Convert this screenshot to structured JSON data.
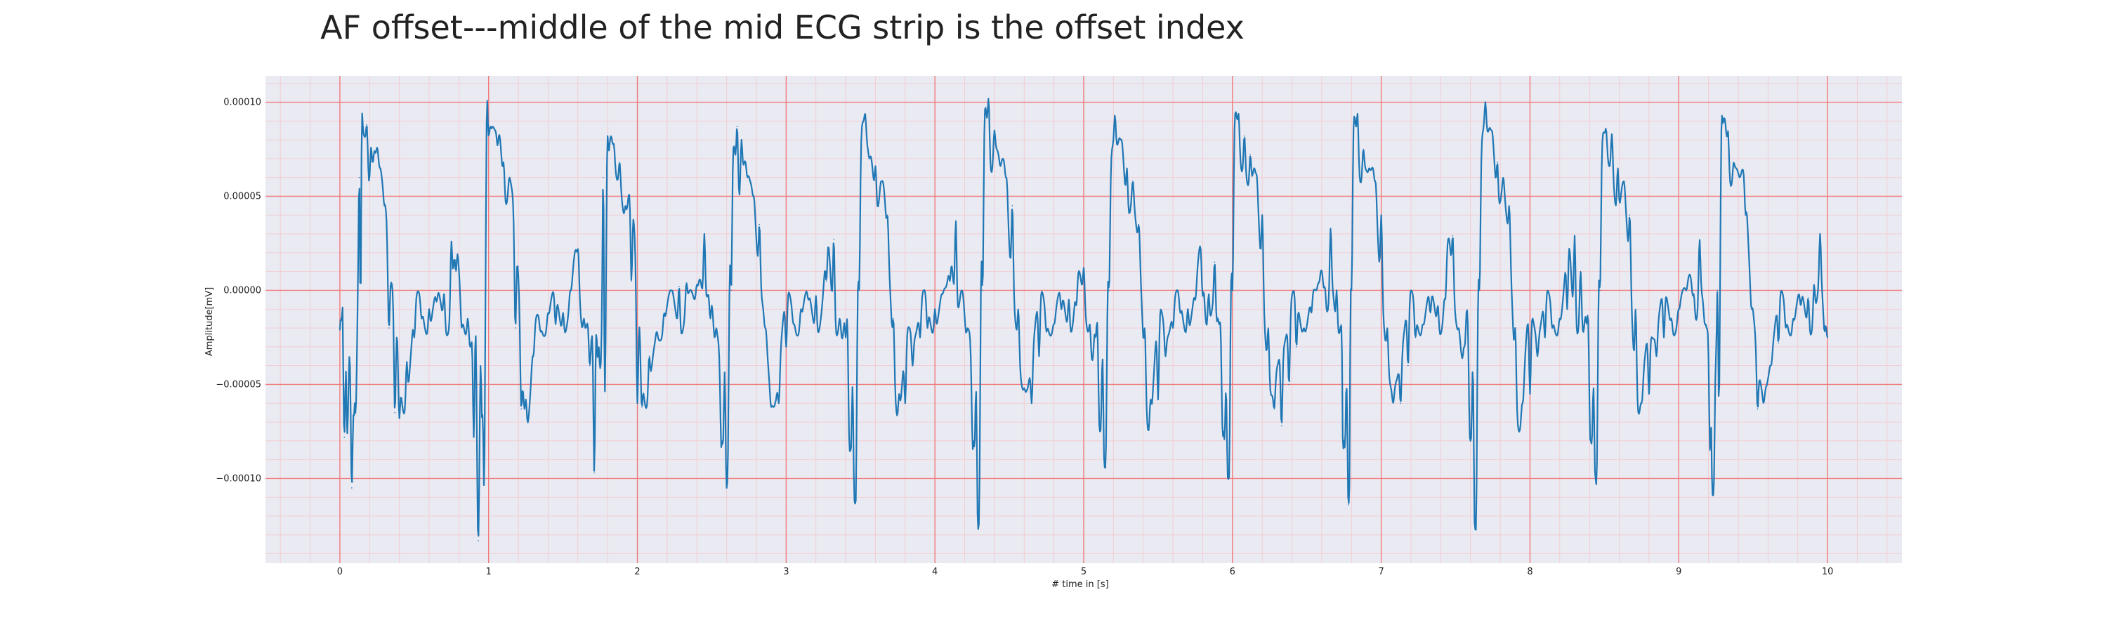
{
  "chart_data": {
    "type": "line",
    "title": "AF offset---middle of the mid ECG strip is the offset index",
    "xlabel": "# time in [s]",
    "ylabel": "Amplitude[mV]",
    "xlim": [
      -0.5,
      10.5
    ],
    "ylim": [
      -0.000145,
      0.000114
    ],
    "x_ticks": [
      0,
      1,
      2,
      3,
      4,
      5,
      6,
      7,
      8,
      9,
      10
    ],
    "x_tick_labels": [
      "0",
      "1",
      "2",
      "3",
      "4",
      "5",
      "6",
      "7",
      "8",
      "9",
      "10"
    ],
    "y_ticks": [
      -0.0001,
      -5e-05,
      0.0,
      5e-05,
      0.0001
    ],
    "y_tick_labels": [
      "−0.00010",
      "−0.00005",
      "0.00000",
      "0.00005",
      "0.00010"
    ],
    "grid": true,
    "colors": {
      "plot_background": "#eaeaf2",
      "major_grid": "#f07a7a",
      "minor_grid": "#f4c6cc",
      "line": "#1f77b4"
    },
    "beats": [
      {
        "r": 0.15,
        "q": 0.1,
        "s": -0.0001,
        "qd": -8e-05,
        "amp": 9.4e-05,
        "pre": -1.5e-05,
        "t": 2.6e-05
      },
      {
        "r": 0.99,
        "q": 0.93,
        "s": -0.000133,
        "qd": -7.5e-05,
        "amp": 0.000101,
        "pre": -1.5e-05,
        "t": 2.6e-05
      },
      {
        "r": 1.8,
        "q": 1.74,
        "s": -9.7e-05,
        "qd": -4e-05,
        "amp": 8.2e-05,
        "pre": -2.2e-05,
        "t": 2.5e-05
      },
      {
        "r": 2.63,
        "q": 2.57,
        "s": -0.000105,
        "qd": -8e-05,
        "amp": 8.7e-05,
        "pre": -1.5e-05,
        "t": 3e-05
      },
      {
        "r": 3.49,
        "q": 3.43,
        "s": -0.000112,
        "qd": -8.5e-05,
        "amp": 9.4e-05,
        "pre": -1.8e-05,
        "t": 2.7e-05
      },
      {
        "r": 4.32,
        "q": 4.26,
        "s": -0.000127,
        "qd": -8e-05,
        "amp": 0.000102,
        "pre": -1.8e-05,
        "t": 3.7e-05
      },
      {
        "r": 5.17,
        "q": 5.11,
        "s": -9.4e-05,
        "qd": -7.5e-05,
        "amp": 9.3e-05,
        "pre": -1.8e-05,
        "t": 1.2e-05
      },
      {
        "r": 6.0,
        "q": 5.94,
        "s": -0.0001,
        "qd": -7.5e-05,
        "amp": 9.4e-05,
        "pre": -1.8e-05,
        "t": 3.3e-05
      },
      {
        "r": 6.8,
        "q": 6.75,
        "s": -0.000114,
        "qd": -8e-05,
        "amp": 9.4e-05,
        "pre": -1.8e-05,
        "t": 3.3e-05
      },
      {
        "r": 7.66,
        "q": 7.6,
        "s": -0.000127,
        "qd": -8e-05,
        "amp": 0.0001,
        "pre": -1.8e-05,
        "t": 2.9e-05
      },
      {
        "r": 8.47,
        "q": 8.41,
        "s": -0.0001,
        "qd": -8e-05,
        "amp": 8.6e-05,
        "pre": -1.8e-05,
        "t": 2.9e-05
      },
      {
        "r": 9.29,
        "q": 9.23,
        "s": -0.000109,
        "qd": -8.5e-05,
        "amp": 9.3e-05,
        "pre": -1.8e-05,
        "t": 2.7e-05
      }
    ],
    "series": [
      {
        "x": [
          0.0,
          0.01,
          0.03,
          0.05,
          0.08,
          0.1,
          0.13,
          0.15,
          0.18,
          0.21,
          0.24,
          0.27,
          0.3,
          0.33,
          0.37,
          0.4,
          0.45,
          0.5,
          0.55,
          0.6,
          0.65,
          0.7,
          0.75,
          0.78,
          0.82,
          0.86,
          0.9,
          0.93,
          0.96,
          0.99,
          1.02,
          1.06,
          1.1,
          1.14,
          1.18,
          1.22,
          1.25,
          1.3,
          1.35,
          1.4,
          1.45,
          1.5,
          1.55,
          1.6,
          1.64,
          1.68,
          1.71,
          1.74,
          1.77,
          1.8,
          1.84,
          1.88,
          1.92,
          1.96,
          2.0,
          2.03,
          2.08,
          2.13,
          2.18,
          2.23,
          2.28,
          2.33,
          2.4,
          2.45,
          2.49,
          2.53,
          2.57,
          2.6,
          2.63,
          2.67,
          2.7,
          2.74,
          2.78,
          2.82,
          2.86,
          2.9,
          2.95,
          3.0,
          3.05,
          3.1,
          3.15,
          3.2,
          3.27,
          3.32,
          3.36,
          3.4,
          3.43,
          3.46,
          3.49,
          3.53,
          3.56,
          3.6,
          3.64,
          3.68,
          3.72,
          3.76,
          3.8,
          3.85,
          3.9,
          3.95,
          4.0,
          4.05,
          4.1,
          4.14,
          4.18,
          4.22,
          4.26,
          4.29,
          4.32,
          4.36,
          4.4,
          4.44,
          4.48,
          4.52,
          4.56,
          4.6,
          4.65,
          4.7,
          4.75,
          4.8,
          4.85,
          4.9,
          4.95,
          5.0,
          5.04,
          5.08,
          5.11,
          5.14,
          5.17,
          5.21,
          5.25,
          5.29,
          5.33,
          5.37,
          5.41,
          5.45,
          5.5,
          5.55,
          5.6,
          5.65,
          5.7,
          5.75,
          5.8,
          5.84,
          5.88,
          5.91,
          5.94,
          5.97,
          6.0,
          6.04,
          6.08,
          6.12,
          6.16,
          6.2,
          6.24,
          6.28,
          6.33,
          6.38,
          6.43,
          6.48,
          6.53,
          6.58,
          6.62,
          6.66,
          6.7,
          6.73,
          6.75,
          6.78,
          6.8,
          6.84,
          6.88,
          6.92,
          6.96,
          7.0,
          7.04,
          7.08,
          7.13,
          7.18,
          7.23,
          7.28,
          7.33,
          7.38,
          7.43,
          7.48,
          7.52,
          7.56,
          7.6,
          7.63,
          7.66,
          7.7,
          7.74,
          7.78,
          7.82,
          7.86,
          7.9,
          7.95,
          8.0,
          8.05,
          8.1,
          8.15,
          8.2,
          8.25,
          8.3,
          8.34,
          8.38,
          8.41,
          8.44,
          8.47,
          8.51,
          8.55,
          8.59,
          8.63,
          8.67,
          8.71,
          8.75,
          8.8,
          8.85,
          8.9,
          8.95,
          9.0,
          9.05,
          9.1,
          9.14,
          9.18,
          9.21,
          9.23,
          9.26,
          9.29,
          9.33,
          9.37,
          9.41,
          9.45,
          9.49,
          9.53,
          9.57,
          9.62,
          9.67,
          9.72,
          9.77,
          9.82,
          9.87,
          9.91,
          9.95,
          9.98,
          10.0
        ],
        "y": [
          -2.1e-05,
          -1.6e-05,
          -7.8e-05,
          -7.6e-05,
          -0.000105,
          -6e-05,
          6e-05,
          9.4e-05,
          8.8e-05,
          7.6e-05,
          7.3e-05,
          6.5e-05,
          4.5e-05,
          -2e-05,
          -6.5e-05,
          -6.8e-05,
          -3.8e-05,
          -2.5e-05,
          -1.5e-05,
          -1e-05,
          -6e-06,
          -2e-06,
          2.6e-05,
          1e-05,
          -2e-05,
          -1.5e-05,
          -7.8e-05,
          -0.000133,
          -6.6e-05,
          0.000101,
          8.6e-05,
          7.7e-05,
          6.8e-05,
          6e-05,
          -2e-05,
          -6.3e-05,
          -5.8e-05,
          -3.5e-05,
          -2.2e-05,
          -1.2e-05,
          -1.8e-05,
          -1.2e-05,
          0.0,
          2.2e-05,
          -1.5e-05,
          -4e-05,
          -9.7e-05,
          -3e-05,
          6e-05,
          8.2e-05,
          7.8e-05,
          6.8e-05,
          4.5e-05,
          5e-06,
          -6e-05,
          -6.2e-05,
          -3.5e-05,
          -2.2e-05,
          -1.2e-05,
          0.0,
          2e-06,
          4e-06,
          3e-06,
          3e-05,
          -1.5e-05,
          -2e-05,
          -8e-05,
          -0.000105,
          0.0,
          8.7e-05,
          8e-05,
          6e-05,
          5e-05,
          3.5e-05,
          -2e-05,
          -6.2e-05,
          -6e-05,
          -3e-05,
          -1.8e-05,
          -1e-05,
          -5e-06,
          -3e-06,
          5e-06,
          2.7e-05,
          -1.5e-05,
          -2.5e-05,
          -8.5e-05,
          -0.000112,
          0.0,
          9.4e-05,
          7e-05,
          6.6e-05,
          5.8e-05,
          4e-05,
          -1.5e-05,
          -5.5e-05,
          -6e-05,
          -4e-05,
          -2.5e-05,
          -2e-05,
          -1e-05,
          -2e-06,
          5e-06,
          3.7e-05,
          0.0,
          -2e-05,
          -8e-05,
          -0.000127,
          0.0,
          0.000102,
          8.5e-05,
          6.6e-05,
          6e-05,
          4.5e-05,
          -1e-05,
          -5.2e-05,
          -6e-05,
          -3.5e-05,
          -2.2e-05,
          -1.8e-05,
          -1e-05,
          -5e-06,
          -8e-06,
          1.2e-05,
          -1.8e-05,
          -2.5e-05,
          -7.5e-05,
          -9.4e-05,
          0.0,
          9.3e-05,
          8e-05,
          6.5e-05,
          5.8e-05,
          3.5e-05,
          -2e-05,
          -5.8e-05,
          -5.8e-05,
          -3.5e-05,
          -2e-05,
          -1.2e-05,
          -1e-05,
          -5e-06,
          -3e-06,
          -2e-06,
          1.5e-05,
          -1.8e-05,
          -7.5e-05,
          -0.0001,
          0.0,
          9.4e-05,
          8.2e-05,
          7.2e-05,
          6.2e-05,
          4e-05,
          -2e-05,
          -6.3e-05,
          -7.2e-05,
          -5e-05,
          -3e-05,
          -2e-05,
          -1.2e-05,
          4e-06,
          2e-06,
          3.3e-05,
          0.0,
          -1.8e-05,
          -8e-05,
          -0.000114,
          0.0,
          9.4e-05,
          7.5e-05,
          6.5e-05,
          5.8e-05,
          4e-05,
          -2e-05,
          -6e-05,
          -6e-05,
          -4e-05,
          -2.5e-05,
          -1.8e-05,
          -1.2e-05,
          -8e-06,
          -5e-06,
          2.9e-05,
          -2e-05,
          -3e-05,
          -8e-05,
          -0.000127,
          0.0,
          0.0001,
          8.5e-05,
          6.8e-05,
          6e-05,
          4.5e-05,
          -2e-05,
          -6e-05,
          -5.5e-05,
          -3.5e-05,
          -2.5e-05,
          -2e-05,
          -1.5e-05,
          -1e-05,
          2.9e-05,
          1e-05,
          -1.8e-05,
          -8e-05,
          -0.0001,
          0.0,
          8.6e-05,
          8.3e-05,
          6.5e-05,
          5.8e-05,
          4e-05,
          -1e-05,
          -6e-05,
          -5.5e-05,
          -3.5e-05,
          -2.5e-05,
          -1.5e-05,
          -1e-05,
          0.0,
          -2e-06,
          2.7e-05,
          -1.8e-05,
          -8.5e-05,
          -0.000109,
          0.0,
          9.3e-05,
          8.5e-05,
          6.8e-05,
          6e-05,
          4e-05,
          -1e-05,
          -6.3e-05,
          -6e-05,
          -4e-05,
          -2.8e-05,
          -2e-05,
          -1.5e-05,
          -8e-06,
          -4e-06,
          3e-06,
          3e-05,
          -2.2e-05,
          -2.5e-05
        ]
      }
    ]
  }
}
